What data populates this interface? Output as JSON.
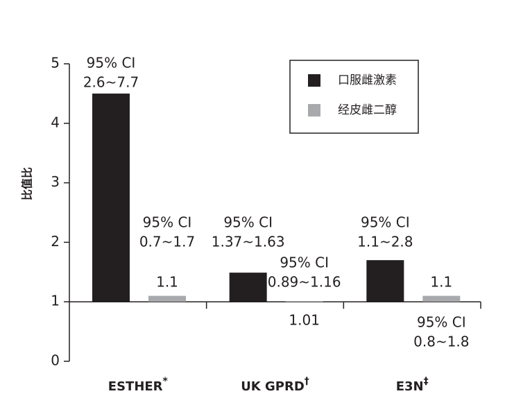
{
  "chart_data": {
    "type": "bar",
    "y_label": "比值比",
    "categories": [
      "ESTHER",
      "UK GPRD",
      "E3N"
    ],
    "category_notes": [
      "*",
      "†",
      "‡"
    ],
    "baseline": 1,
    "ylim": [
      0,
      5
    ],
    "yticks": [
      0,
      1,
      2,
      3,
      4,
      5
    ],
    "legend": "top-right",
    "series": [
      {
        "name": "口服雌激素",
        "color": "#231f20",
        "values": [
          4.5,
          1.49,
          1.7
        ],
        "ci_labels": [
          [
            "95% CI",
            "2.6~7.7"
          ],
          [
            "95% CI",
            "1.37~1.63"
          ],
          [
            "95% CI",
            "1.1~2.8"
          ]
        ]
      },
      {
        "name": "经皮雌二醇",
        "color": "#a7a9ac",
        "values": [
          1.1,
          1.01,
          1.1
        ],
        "ci_labels": [
          [
            "95% CI",
            "0.7~1.7"
          ],
          [
            "95% CI",
            "0.89~1.16"
          ],
          [
            "95% CI",
            "0.8~1.8"
          ]
        ]
      }
    ]
  }
}
